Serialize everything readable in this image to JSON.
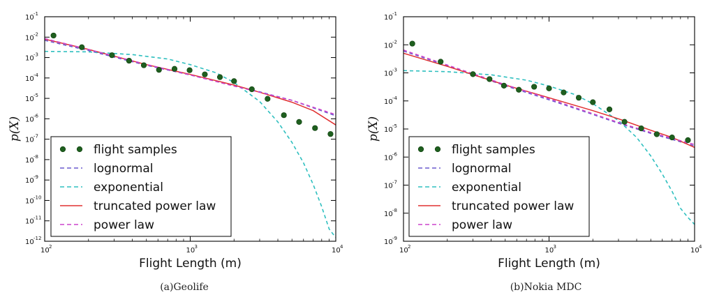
{
  "chart_data": [
    {
      "type": "scatter",
      "panel_caption": "(a)Geolife",
      "xlabel": "Flight Length (m)",
      "ylabel": "p(X)",
      "xscale": "log",
      "yscale": "log",
      "xlim": [
        100,
        10000
      ],
      "ylim": [
        1e-12,
        0.1
      ],
      "xticks": [
        {
          "base": "10",
          "exp": "2"
        },
        {
          "base": "10",
          "exp": "3"
        },
        {
          "base": "10",
          "exp": "4"
        }
      ],
      "yticks": [
        {
          "base": "10",
          "exp": "-1"
        },
        {
          "base": "10",
          "exp": "-2"
        },
        {
          "base": "10",
          "exp": "-3"
        },
        {
          "base": "10",
          "exp": "-4"
        },
        {
          "base": "10",
          "exp": "-5"
        },
        {
          "base": "10",
          "exp": "-6"
        },
        {
          "base": "10",
          "exp": "-7"
        },
        {
          "base": "10",
          "exp": "-8"
        },
        {
          "base": "10",
          "exp": "-9"
        },
        {
          "base": "10",
          "exp": "-10"
        },
        {
          "base": "10",
          "exp": "-11"
        },
        {
          "base": "10",
          "exp": "-12"
        }
      ],
      "legend_position": "lower-left",
      "legend": [
        "flight samples",
        "lognormal",
        "exponential",
        "truncated power law",
        "power law"
      ],
      "samples": {
        "name": "flight samples",
        "color": "#1f5f1f",
        "x": [
          115,
          180,
          290,
          380,
          480,
          610,
          780,
          990,
          1260,
          1600,
          2000,
          2650,
          3400,
          4400,
          5600,
          7200,
          9200
        ],
        "y": [
          0.012,
          0.0032,
          0.0013,
          0.0007,
          0.00042,
          0.00025,
          0.00028,
          0.00024,
          0.00015,
          0.00011,
          7e-05,
          2.8e-05,
          9.5e-06,
          1.5e-06,
          7e-07,
          3.5e-07,
          1.8e-07
        ]
      },
      "series": [
        {
          "name": "lognormal",
          "color": "#6a5acd",
          "style": "dashed",
          "x": [
            100,
            200,
            500,
            1000,
            2000,
            3000,
            5000,
            10000
          ],
          "y": [
            0.007,
            0.0022,
            0.00042,
            0.00014,
            4.2e-05,
            2.1e-05,
            8e-06,
            1.4e-06
          ]
        },
        {
          "name": "exponential",
          "color": "#2ebfbf",
          "style": "dashed",
          "x": [
            100,
            200,
            400,
            700,
            1000,
            1500,
            2000,
            3000,
            4000,
            5000,
            6000,
            7000,
            8000,
            9000,
            10000
          ],
          "y": [
            0.002,
            0.0019,
            0.0014,
            0.00085,
            0.00045,
            0.00018,
            6e-05,
            7e-06,
            7e-07,
            7e-08,
            7e-09,
            6e-10,
            5e-11,
            4e-12,
            1.5e-12
          ]
        },
        {
          "name": "truncated power law",
          "color": "#e03030",
          "style": "solid",
          "x": [
            100,
            200,
            500,
            1000,
            2000,
            3000,
            5000,
            7000,
            10000
          ],
          "y": [
            0.008,
            0.0025,
            0.00045,
            0.00015,
            4.5e-05,
            2e-05,
            6.5e-06,
            2.5e-06,
            5e-07
          ]
        },
        {
          "name": "power law",
          "color": "#cc44cc",
          "style": "dashed",
          "x": [
            100,
            200,
            500,
            1000,
            2000,
            3000,
            5000,
            10000
          ],
          "y": [
            0.0085,
            0.0025,
            0.00046,
            0.00014,
            4e-05,
            2e-05,
            8e-06,
            1.6e-06
          ]
        }
      ]
    },
    {
      "type": "scatter",
      "panel_caption": "(b)Nokia MDC",
      "xlabel": "Flight Length (m)",
      "ylabel": "p(X)",
      "xscale": "log",
      "yscale": "log",
      "xlim": [
        100,
        10000
      ],
      "ylim": [
        1e-09,
        0.1
      ],
      "xticks": [
        {
          "base": "10",
          "exp": "2"
        },
        {
          "base": "10",
          "exp": "3"
        },
        {
          "base": "10",
          "exp": "4"
        }
      ],
      "yticks": [
        {
          "base": "10",
          "exp": "-1"
        },
        {
          "base": "10",
          "exp": "-2"
        },
        {
          "base": "10",
          "exp": "-3"
        },
        {
          "base": "10",
          "exp": "-4"
        },
        {
          "base": "10",
          "exp": "-5"
        },
        {
          "base": "10",
          "exp": "-6"
        },
        {
          "base": "10",
          "exp": "-7"
        },
        {
          "base": "10",
          "exp": "-8"
        },
        {
          "base": "10",
          "exp": "-9"
        }
      ],
      "legend_position": "lower-left",
      "legend": [
        "flight samples",
        "lognormal",
        "exponential",
        "truncated power law",
        "power law"
      ],
      "samples": {
        "name": "flight samples",
        "color": "#1f5f1f",
        "x": [
          115,
          180,
          300,
          390,
          490,
          620,
          790,
          1000,
          1260,
          1600,
          2000,
          2600,
          3300,
          4300,
          5500,
          7000,
          9000
        ],
        "y": [
          0.011,
          0.0025,
          0.0009,
          0.0006,
          0.00035,
          0.00025,
          0.00032,
          0.00028,
          0.0002,
          0.00013,
          9e-05,
          5e-05,
          1.8e-05,
          1.05e-05,
          6.5e-06,
          5e-06,
          4e-06
        ]
      },
      "series": [
        {
          "name": "lognormal",
          "color": "#6a5acd",
          "style": "dashed",
          "x": [
            100,
            200,
            500,
            1000,
            2000,
            3000,
            5000,
            10000
          ],
          "y": [
            0.006,
            0.0018,
            0.00035,
            0.00011,
            3.3e-05,
            1.6e-05,
            7e-06,
            2.5e-06
          ]
        },
        {
          "name": "exponential",
          "color": "#2ebfbf",
          "style": "dashed",
          "x": [
            100,
            200,
            400,
            700,
            1000,
            1500,
            2000,
            3000,
            4000,
            5000,
            6000,
            7000,
            8000,
            9000,
            10000
          ],
          "y": [
            0.0012,
            0.0011,
            0.00085,
            0.00055,
            0.00034,
            0.00017,
            8e-05,
            2e-05,
            5e-06,
            1.1e-06,
            2.5e-07,
            6e-08,
            1.5e-08,
            7e-09,
            4e-09
          ]
        },
        {
          "name": "truncated power law",
          "color": "#e03030",
          "style": "solid",
          "x": [
            100,
            200,
            500,
            1000,
            2000,
            3000,
            5000,
            7000,
            10000
          ],
          "y": [
            0.005,
            0.0017,
            0.00037,
            0.00013,
            4.5e-05,
            2.3e-05,
            9e-06,
            5e-06,
            2.2e-06
          ]
        },
        {
          "name": "power law",
          "color": "#cc44cc",
          "style": "dashed",
          "x": [
            100,
            200,
            500,
            1000,
            2000,
            3000,
            5000,
            10000
          ],
          "y": [
            0.0065,
            0.0019,
            0.00038,
            0.00012,
            3.5e-05,
            1.7e-05,
            7.5e-06,
            2.8e-06
          ]
        }
      ]
    }
  ]
}
